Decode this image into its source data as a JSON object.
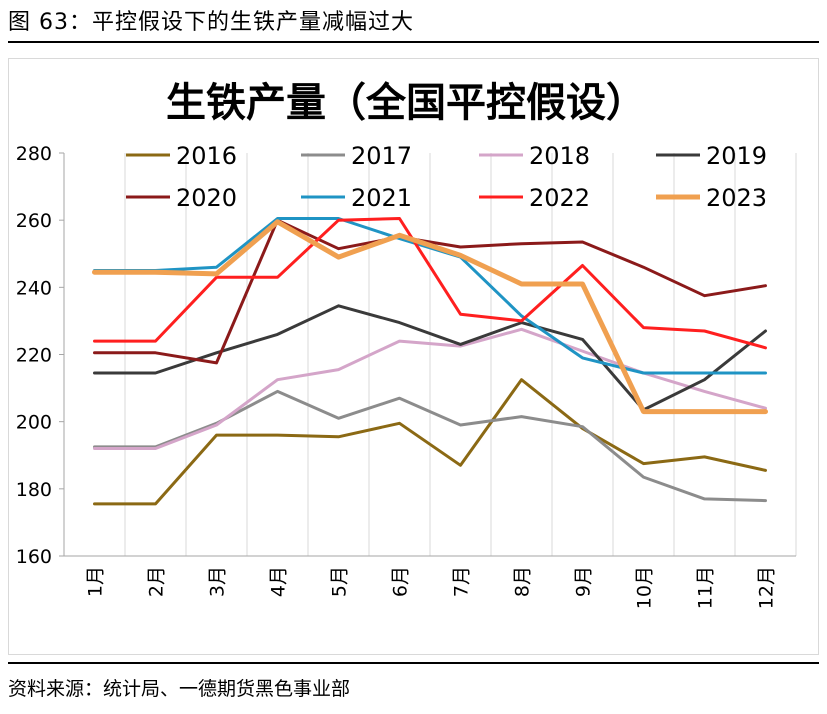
{
  "figure": {
    "label": "图 63：平控假设下的生铁产量减幅过大",
    "source": "资料来源：统计局、一德期货黑色事业部"
  },
  "chart_data": {
    "type": "line",
    "title": "生铁产量（全国平控假设）",
    "xlabel": "",
    "ylabel": "",
    "ylim": [
      160,
      280
    ],
    "yticks": [
      160,
      180,
      200,
      220,
      240,
      260,
      280
    ],
    "grid": "vertical",
    "legend_position": "top",
    "categories": [
      "1月",
      "2月",
      "3月",
      "4月",
      "5月",
      "6月",
      "7月",
      "8月",
      "9月",
      "10月",
      "11月",
      "12月"
    ],
    "series": [
      {
        "name": "2016",
        "color": "#8b6914",
        "width": 3,
        "values": [
          175.5,
          175.5,
          196,
          196,
          195.5,
          199.5,
          187,
          212.5,
          198,
          187.5,
          189.5,
          185.5
        ]
      },
      {
        "name": "2017",
        "color": "#8c8c8c",
        "width": 3,
        "values": [
          192.5,
          192.5,
          199.5,
          209,
          201,
          207,
          199,
          201.5,
          198.5,
          183.5,
          177,
          176.5
        ]
      },
      {
        "name": "2018",
        "color": "#d4a5c9",
        "width": 3,
        "values": [
          192,
          192,
          199,
          212.5,
          215.5,
          224,
          222.5,
          227.5,
          221,
          214.5,
          209,
          204
        ]
      },
      {
        "name": "2019",
        "color": "#3a3a3a",
        "width": 3,
        "values": [
          214.5,
          214.5,
          220.5,
          226,
          234.5,
          229.5,
          223,
          229.5,
          224.5,
          203.5,
          212.5,
          227
        ]
      },
      {
        "name": "2020",
        "color": "#8b1a1a",
        "width": 3,
        "values": [
          220.5,
          220.5,
          217.5,
          260,
          251.5,
          255,
          252,
          253,
          253.5,
          246,
          237.5,
          240.5
        ]
      },
      {
        "name": "2021",
        "color": "#1f94c4",
        "width": 3,
        "values": [
          245,
          245,
          246,
          260.5,
          260.5,
          254.5,
          249,
          231.5,
          219,
          214.5,
          214.5,
          214.5
        ]
      },
      {
        "name": "2022",
        "color": "#ff1f1f",
        "width": 3,
        "values": [
          224,
          224,
          243,
          243,
          260,
          260.5,
          232,
          230,
          246.5,
          228,
          227,
          222
        ]
      },
      {
        "name": "2023",
        "color": "#f0a050",
        "width": 5,
        "values": [
          244.5,
          244.5,
          244,
          259.5,
          249,
          255.5,
          249.5,
          241,
          241,
          203,
          203,
          203
        ]
      }
    ]
  }
}
